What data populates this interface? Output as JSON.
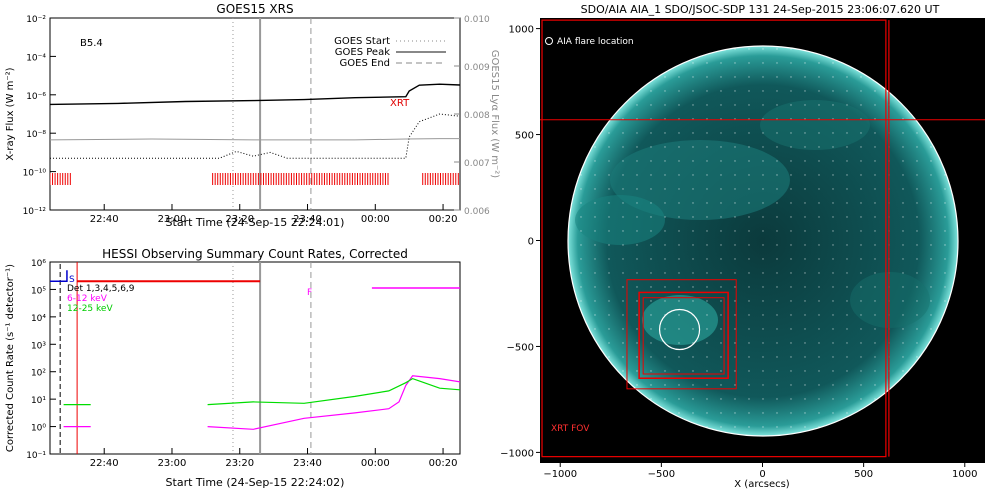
{
  "chart_data": [
    {
      "type": "line",
      "title": "GOES15 XRS",
      "xlabel": "Start Time (24-Sep-15 22:24:01)",
      "ylabel": "X-ray Flux (W m⁻²)",
      "ylabel_right": "GOES15 Lyα Flux (W m⁻²)",
      "x_ticks": [
        "22:40",
        "23:00",
        "23:20",
        "23:40",
        "00:00",
        "00:20"
      ],
      "y_ticks_left": [
        "10⁻²",
        "10⁻⁴",
        "10⁻⁶",
        "10⁻⁸",
        "10⁻¹⁰",
        "10⁻¹²"
      ],
      "y_ticks_right": [
        "0.010",
        "0.009",
        "0.008",
        "0.007",
        "0.006"
      ],
      "ylim_log10": [
        -12,
        -2
      ],
      "ylim_right": [
        0.006,
        0.01
      ],
      "annotations": {
        "class_label": "B5.4",
        "xrt_label": "XRT"
      },
      "legend": [
        "GOES Start",
        "GOES Peak",
        "GOES End"
      ],
      "events_minutes": {
        "goes_start": 54,
        "goes_peak": 62,
        "goes_end": 77
      },
      "series": [
        {
          "name": "",
          "color": "#000000",
          "log10_values": [
            [
              0,
              -6.5
            ],
            [
              20,
              -6.45
            ],
            [
              40,
              -6.35
            ],
            [
              60,
              -6.3
            ],
            [
              75,
              -6.25
            ],
            [
              90,
              -6.15
            ],
            [
              105,
              -6.1
            ],
            [
              106,
              -5.8
            ],
            [
              109,
              -5.5
            ],
            [
              115,
              -5.45
            ],
            [
              130,
              -5.55
            ],
            [
              145,
              -5.7
            ],
            [
              160,
              -5.82
            ]
          ]
        },
        {
          "name": "",
          "color": "#999999",
          "log10_values": [
            [
              0,
              -8.35
            ],
            [
              30,
              -8.3
            ],
            [
              60,
              -8.35
            ],
            [
              90,
              -8.35
            ],
            [
              105,
              -8.3
            ],
            [
              115,
              -8.28
            ],
            [
              160,
              -8.3
            ]
          ]
        },
        {
          "name": "",
          "color": "#000000",
          "dotted": true,
          "log10_values": [
            [
              0,
              -9.3
            ],
            [
              30,
              -9.3
            ],
            [
              50,
              -9.3
            ],
            [
              55,
              -8.95
            ],
            [
              60,
              -9.2
            ],
            [
              65,
              -9.0
            ],
            [
              70,
              -9.3
            ],
            [
              105,
              -9.3
            ],
            [
              106,
              -8.2
            ],
            [
              109,
              -7.4
            ],
            [
              115,
              -7.0
            ],
            [
              125,
              -7.2
            ],
            [
              135,
              -7.5
            ],
            [
              145,
              -7.75
            ],
            [
              160,
              -7.9
            ]
          ]
        }
      ]
    },
    {
      "type": "line",
      "title": "HESSI Observing Summary Count Rates, Corrected",
      "xlabel": "Start Time (24-Sep-15 22:24:02)",
      "ylabel": "Corrected Count Rate (s⁻¹ detector⁻¹)",
      "x_ticks": [
        "22:40",
        "23:00",
        "23:20",
        "23:40",
        "00:00",
        "00:20"
      ],
      "y_ticks": [
        "10⁶",
        "10⁵",
        "10⁴",
        "10³",
        "10²",
        "10¹",
        "10⁰",
        "10⁻¹"
      ],
      "ylim_log10": [
        -1,
        6
      ],
      "legend_labels": {
        "s": "S",
        "det": "Det 1,3,4,5,6,9",
        "f": "F"
      },
      "series": [
        {
          "name": "6-12 keV",
          "color": "#ff00ff",
          "log10_values": [
            [
              0,
              null
            ],
            [
              4,
              0.0
            ],
            [
              12,
              0.0
            ],
            [
              12.5,
              null
            ],
            [
              46,
              null
            ],
            [
              46.5,
              0.0
            ],
            [
              60,
              -0.1
            ],
            [
              75,
              0.3
            ],
            [
              90,
              0.5
            ],
            [
              100,
              0.65
            ],
            [
              103,
              0.9
            ],
            [
              105,
              1.5
            ],
            [
              107,
              1.85
            ],
            [
              115,
              1.75
            ],
            [
              125,
              1.55
            ],
            [
              135,
              1.4
            ],
            [
              140,
              1.35
            ],
            [
              140.5,
              null
            ]
          ]
        },
        {
          "name": "12-25 keV",
          "color": "#00dd00",
          "log10_values": [
            [
              0,
              null
            ],
            [
              4,
              0.8
            ],
            [
              12,
              0.8
            ],
            [
              12.5,
              null
            ],
            [
              46,
              null
            ],
            [
              46.5,
              0.8
            ],
            [
              60,
              0.9
            ],
            [
              75,
              0.85
            ],
            [
              90,
              1.1
            ],
            [
              100,
              1.3
            ],
            [
              105,
              1.6
            ],
            [
              107,
              1.75
            ],
            [
              115,
              1.4
            ],
            [
              125,
              1.3
            ],
            [
              140,
              1.2
            ],
            [
              141,
              null
            ]
          ]
        }
      ]
    },
    {
      "type": "scatter",
      "title": "SDO/AIA AIA_1 SDO/JSOC-SDP 131 24-Sep-2015 23:06:07.620 UT",
      "xlabel": "X (arcsecs)",
      "ylabel": "",
      "x_ticks": [
        "−1000",
        "−500",
        "0",
        "500",
        "1000"
      ],
      "y_ticks": [
        "1000",
        "500",
        "0",
        "−500",
        "−1000"
      ],
      "xlim": [
        -1100,
        1100
      ],
      "ylim": [
        -1050,
        1050
      ],
      "legend_label": "AIA flare location",
      "fov_label": "XRT FOV",
      "solar_radius_arcsec": 950,
      "flare_location_arcsec": [
        -410,
        -420
      ]
    }
  ]
}
